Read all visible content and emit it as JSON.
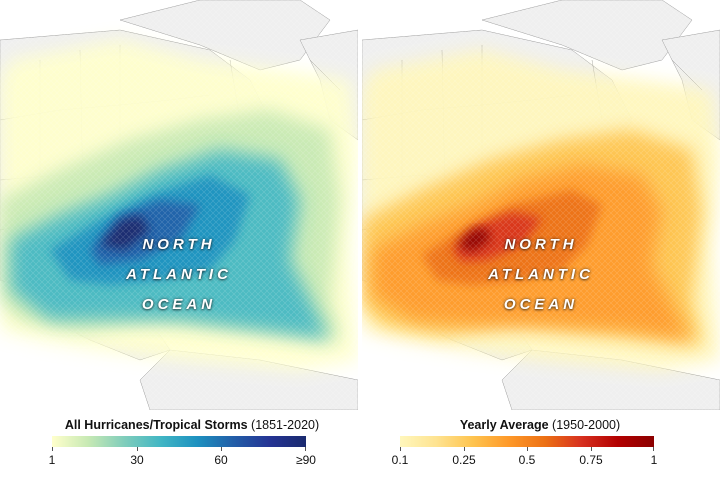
{
  "maps": {
    "left": {
      "ocean_label": [
        "NORTH",
        "ATLANTIC",
        "OCEAN"
      ],
      "legend": {
        "title": "All Hurricanes/Tropical Storms",
        "period": "(1851-2020)",
        "ticks": [
          {
            "label": "1",
            "value": 0.0
          },
          {
            "label": "30",
            "value": 0.333
          },
          {
            "label": "60",
            "value": 0.667
          },
          {
            "label": "≥90",
            "value": 1.0
          }
        ],
        "colors": [
          "#ffffcc",
          "#c7e9b4",
          "#7fcdbb",
          "#41b6c4",
          "#1d91c0",
          "#225ea8",
          "#253494",
          "#1a2a6e"
        ]
      }
    },
    "right": {
      "ocean_label": [
        "NORTH",
        "ATLANTIC",
        "OCEAN"
      ],
      "legend": {
        "title": "Yearly Average",
        "period": "(1950-2000)",
        "ticks": [
          {
            "label": "0.1",
            "value": 0.0
          },
          {
            "label": "0.25",
            "value": 0.25
          },
          {
            "label": "0.5",
            "value": 0.5
          },
          {
            "label": "0.75",
            "value": 0.75
          },
          {
            "label": "1",
            "value": 1.0
          }
        ],
        "colors": [
          "#fff7bc",
          "#fee391",
          "#fec44f",
          "#fe9929",
          "#ec7014",
          "#d7301f",
          "#b30000",
          "#8b0000"
        ]
      }
    }
  },
  "colors": {
    "land": "#f2f2f2",
    "border": "#8a8a8a",
    "ocean": "#ffffff"
  }
}
